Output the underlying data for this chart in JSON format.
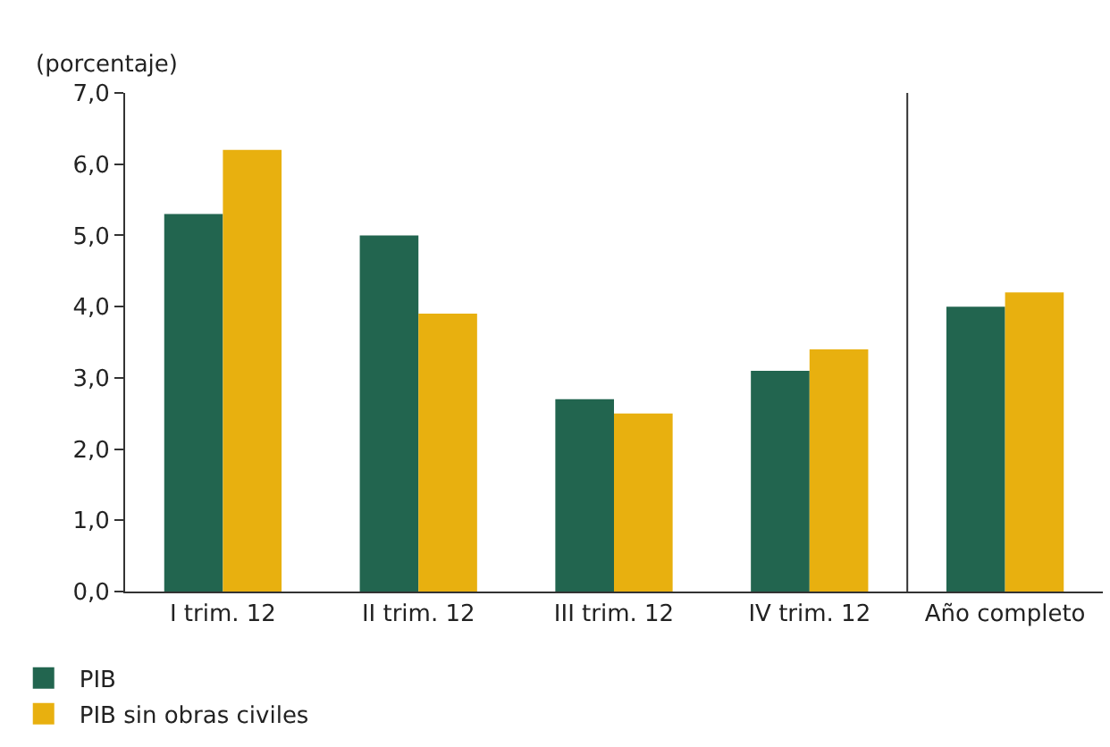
{
  "chart_data": {
    "type": "bar",
    "ylabel": "(porcentaje)",
    "categories": [
      "I trim. 12",
      "II trim. 12",
      "III trim. 12",
      "IV trim. 12",
      "Año completo"
    ],
    "series": [
      {
        "name": "PIB",
        "color": "#22654f",
        "values": [
          5.3,
          5.0,
          2.7,
          3.1,
          4.0
        ]
      },
      {
        "name": "PIB sin obras civiles",
        "color": "#e8b00f",
        "values": [
          6.2,
          3.9,
          2.5,
          3.4,
          4.2
        ]
      }
    ],
    "ylim": [
      0,
      7
    ],
    "yticks": [
      {
        "value": 0,
        "label": "0,0"
      },
      {
        "value": 1,
        "label": "1,0"
      },
      {
        "value": 2,
        "label": "2,0"
      },
      {
        "value": 3,
        "label": "3,0"
      },
      {
        "value": 4,
        "label": "4,0"
      },
      {
        "value": 5,
        "label": "5,0"
      },
      {
        "value": 6,
        "label": "6,0"
      },
      {
        "value": 7,
        "label": "7,0"
      }
    ],
    "grid": false,
    "legend": "bottom"
  }
}
